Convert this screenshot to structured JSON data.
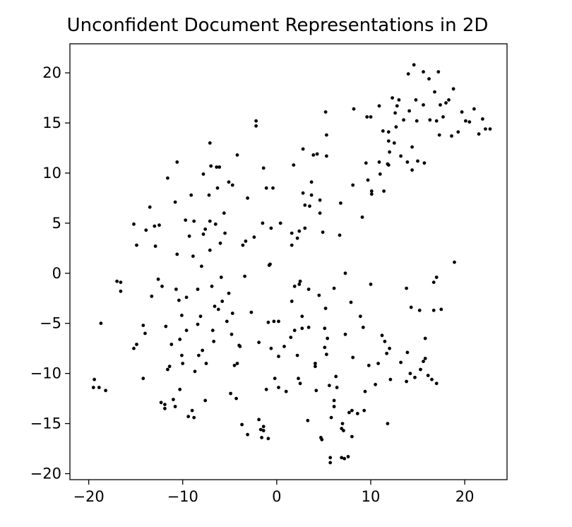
{
  "chart_data": {
    "type": "scatter",
    "title": "Unconfident Document Representations in 2D",
    "xlabel": "",
    "ylabel": "",
    "xlim": [
      -22,
      24.5
    ],
    "ylim": [
      -20.6,
      22.9
    ],
    "xticks": [
      -20,
      -10,
      0,
      10,
      20
    ],
    "yticks": [
      -20,
      -15,
      -10,
      -5,
      0,
      5,
      10,
      15,
      20
    ],
    "xtick_labels": [
      "−20",
      "−10",
      "0",
      "10",
      "20"
    ],
    "ytick_labels": [
      "−20",
      "−15",
      "−10",
      "−5",
      "0",
      "5",
      "10",
      "15",
      "20"
    ],
    "grid": false,
    "marker_color": "#000000",
    "points": [
      [
        -19.4,
        -10.6
      ],
      [
        -19.5,
        -11.4
      ],
      [
        -18.9,
        -11.4
      ],
      [
        -18.2,
        -11.7
      ],
      [
        -18.7,
        -5.0
      ],
      [
        -17.0,
        -0.8
      ],
      [
        -16.6,
        -0.9
      ],
      [
        -16.6,
        -1.8
      ],
      [
        -15.2,
        -7.5
      ],
      [
        -14.9,
        -7.1
      ],
      [
        -15.2,
        4.9
      ],
      [
        -14.9,
        2.8
      ],
      [
        -14.2,
        -5.2
      ],
      [
        -14.0,
        -6.0
      ],
      [
        -14.2,
        -10.5
      ],
      [
        -13.9,
        4.3
      ],
      [
        -13.5,
        6.6
      ],
      [
        -13.0,
        4.7
      ],
      [
        -12.9,
        2.7
      ],
      [
        -12.6,
        -0.6
      ],
      [
        -13.3,
        -2.3
      ],
      [
        -12.5,
        4.8
      ],
      [
        -12.2,
        -1.3
      ],
      [
        -11.8,
        -5.3
      ],
      [
        -12.3,
        -12.9
      ],
      [
        -11.9,
        -13.1
      ],
      [
        -11.9,
        -13.5
      ],
      [
        -11.6,
        9.5
      ],
      [
        -11.4,
        -9.3
      ],
      [
        -11.6,
        -9.6
      ],
      [
        -11.2,
        -7.1
      ],
      [
        -11.0,
        -12.6
      ],
      [
        -10.8,
        -13.3
      ],
      [
        -10.8,
        7.1
      ],
      [
        -10.6,
        11.1
      ],
      [
        -10.6,
        1.9
      ],
      [
        -10.7,
        -1.6
      ],
      [
        -10.4,
        -2.7
      ],
      [
        -10.3,
        -6.6
      ],
      [
        -10.1,
        -4.2
      ],
      [
        -10.1,
        -8.2
      ],
      [
        -10.0,
        -9.0
      ],
      [
        -10.3,
        -11.6
      ],
      [
        -9.7,
        5.3
      ],
      [
        -9.6,
        -5.7
      ],
      [
        -9.6,
        -2.4
      ],
      [
        -9.3,
        3.7
      ],
      [
        -9.1,
        7.8
      ],
      [
        -9.0,
        -13.7
      ],
      [
        -8.8,
        -14.4
      ],
      [
        -8.8,
        5.2
      ],
      [
        -8.9,
        1.7
      ],
      [
        -9.4,
        -14.3
      ],
      [
        -8.7,
        -9.8
      ],
      [
        -8.4,
        -1.6
      ],
      [
        -8.4,
        -5.1
      ],
      [
        -8.3,
        -8.2
      ],
      [
        -8.1,
        -4.3
      ],
      [
        -8.0,
        0.7
      ],
      [
        -7.9,
        -7.7
      ],
      [
        -7.8,
        3.9
      ],
      [
        -7.8,
        9.9
      ],
      [
        -7.6,
        -12.7
      ],
      [
        -7.5,
        -9.0
      ],
      [
        -7.6,
        4.4
      ],
      [
        -7.2,
        7.8
      ],
      [
        -7.1,
        13.0
      ],
      [
        -7.1,
        5.2
      ],
      [
        -7.0,
        10.7
      ],
      [
        -7.1,
        2.3
      ],
      [
        -6.9,
        -1.3
      ],
      [
        -6.8,
        -5.7
      ],
      [
        -6.7,
        -6.8
      ],
      [
        -6.6,
        -3.3
      ],
      [
        -6.5,
        4.9
      ],
      [
        -6.4,
        10.6
      ],
      [
        -6.3,
        8.5
      ],
      [
        -6.2,
        -3.6
      ],
      [
        -6.1,
        10.6
      ],
      [
        -6.0,
        3.0
      ],
      [
        -5.9,
        -0.4
      ],
      [
        -5.8,
        -2.8
      ],
      [
        -5.6,
        6.0
      ],
      [
        -5.5,
        4.0
      ],
      [
        -5.3,
        -4.8
      ],
      [
        -5.1,
        -2.0
      ],
      [
        -5.1,
        9.1
      ],
      [
        -4.9,
        -12.0
      ],
      [
        -4.8,
        -6.1
      ],
      [
        -4.7,
        -4.0
      ],
      [
        -4.7,
        8.8
      ],
      [
        -4.5,
        -9.2
      ],
      [
        -4.3,
        -12.5
      ],
      [
        -4.2,
        11.8
      ],
      [
        -4.2,
        -9.0
      ],
      [
        -4.0,
        -7.2
      ],
      [
        -3.9,
        -7.3
      ],
      [
        -3.7,
        -15.1
      ],
      [
        -3.6,
        2.8
      ],
      [
        -3.4,
        -0.3
      ],
      [
        -3.3,
        3.2
      ],
      [
        -3.1,
        -16.1
      ],
      [
        -3.1,
        7.5
      ],
      [
        -2.7,
        -3.9
      ],
      [
        -2.4,
        3.6
      ],
      [
        -2.2,
        14.7
      ],
      [
        -2.2,
        15.2
      ],
      [
        -1.9,
        -6.9
      ],
      [
        -1.9,
        -14.6
      ],
      [
        -1.7,
        -15.6
      ],
      [
        -1.6,
        -16.4
      ],
      [
        -1.4,
        -15.3
      ],
      [
        -1.4,
        -15.7
      ],
      [
        -1.5,
        5.0
      ],
      [
        -1.4,
        10.5
      ],
      [
        -1.1,
        8.5
      ],
      [
        -1.1,
        -11.6
      ],
      [
        -0.9,
        -16.5
      ],
      [
        -0.9,
        -4.9
      ],
      [
        -0.8,
        0.8
      ],
      [
        -0.7,
        0.9
      ],
      [
        -0.6,
        -7.5
      ],
      [
        -0.6,
        4.5
      ],
      [
        -0.4,
        8.5
      ],
      [
        -0.3,
        -4.8
      ],
      [
        -0.2,
        -10.5
      ],
      [
        0.2,
        -11.4
      ],
      [
        0.2,
        -4.8
      ],
      [
        0.2,
        -8.3
      ],
      [
        0.4,
        5.0
      ],
      [
        0.8,
        -7.3
      ],
      [
        1.0,
        -11.8
      ],
      [
        1.5,
        -6.4
      ],
      [
        1.6,
        2.8
      ],
      [
        1.6,
        4.0
      ],
      [
        1.6,
        -2.8
      ],
      [
        1.9,
        -1.3
      ],
      [
        1.8,
        10.8
      ],
      [
        1.9,
        -5.7
      ],
      [
        2.2,
        -8.2
      ],
      [
        2.2,
        3.5
      ],
      [
        2.4,
        4.2
      ],
      [
        2.3,
        -10.5
      ],
      [
        2.4,
        -1.1
      ],
      [
        2.5,
        -0.8
      ],
      [
        2.5,
        -11.0
      ],
      [
        2.7,
        -5.5
      ],
      [
        2.7,
        -4.3
      ],
      [
        2.8,
        12.4
      ],
      [
        2.8,
        8.0
      ],
      [
        3.0,
        6.8
      ],
      [
        3.0,
        4.5
      ],
      [
        3.3,
        -14.7
      ],
      [
        3.4,
        -5.4
      ],
      [
        3.4,
        -1.6
      ],
      [
        3.5,
        6.7
      ],
      [
        3.7,
        7.8
      ],
      [
        3.7,
        9.1
      ],
      [
        3.9,
        11.8
      ],
      [
        4.1,
        -9.0
      ],
      [
        4.1,
        -9.3
      ],
      [
        4.2,
        -11.7
      ],
      [
        4.3,
        11.9
      ],
      [
        4.5,
        -2.2
      ],
      [
        4.6,
        6.0
      ],
      [
        4.6,
        7.3
      ],
      [
        4.7,
        -16.4
      ],
      [
        4.8,
        -16.6
      ],
      [
        4.9,
        4.1
      ],
      [
        5.1,
        -5.5
      ],
      [
        5.1,
        -7.4
      ],
      [
        5.2,
        -3.5
      ],
      [
        5.2,
        16.1
      ],
      [
        5.3,
        -8.1
      ],
      [
        5.3,
        11.7
      ],
      [
        5.3,
        13.8
      ],
      [
        5.4,
        -6.5
      ],
      [
        5.6,
        -11.2
      ],
      [
        5.7,
        -18.4
      ],
      [
        5.7,
        -18.9
      ],
      [
        5.8,
        -14.4
      ],
      [
        6.1,
        -13.3
      ],
      [
        6.1,
        -12.7
      ],
      [
        6.1,
        -1.5
      ],
      [
        6.3,
        -10.3
      ],
      [
        6.4,
        -11.4
      ],
      [
        6.7,
        3.8
      ],
      [
        6.8,
        7.0
      ],
      [
        6.9,
        -18.4
      ],
      [
        6.9,
        -15.5
      ],
      [
        7.0,
        -15.0
      ],
      [
        7.1,
        -15.7
      ],
      [
        7.2,
        -18.5
      ],
      [
        7.3,
        -6.1
      ],
      [
        7.3,
        0.0
      ],
      [
        7.6,
        -18.3
      ],
      [
        7.7,
        -13.9
      ],
      [
        7.9,
        -2.9
      ],
      [
        8.0,
        -16.3
      ],
      [
        8.0,
        -13.7
      ],
      [
        8.1,
        8.8
      ],
      [
        8.1,
        -8.4
      ],
      [
        8.2,
        16.4
      ],
      [
        8.6,
        -14.0
      ],
      [
        8.9,
        -4.3
      ],
      [
        9.1,
        5.6
      ],
      [
        9.2,
        -5.4
      ],
      [
        9.3,
        -13.7
      ],
      [
        9.4,
        -11.8
      ],
      [
        9.5,
        11.0
      ],
      [
        9.6,
        15.6
      ],
      [
        9.7,
        9.3
      ],
      [
        9.8,
        -9.2
      ],
      [
        10.0,
        -1.1
      ],
      [
        10.0,
        15.6
      ],
      [
        10.1,
        7.9
      ],
      [
        10.1,
        8.2
      ],
      [
        10.5,
        -11.1
      ],
      [
        10.8,
        -9.0
      ],
      [
        10.9,
        16.7
      ],
      [
        10.9,
        11.1
      ],
      [
        11.0,
        9.9
      ],
      [
        11.2,
        -6.2
      ],
      [
        11.3,
        14.2
      ],
      [
        11.4,
        8.2
      ],
      [
        11.5,
        -6.8
      ],
      [
        11.7,
        -8.0
      ],
      [
        11.8,
        10.9
      ],
      [
        11.8,
        -15.0
      ],
      [
        11.9,
        10.8
      ],
      [
        11.9,
        13.2
      ],
      [
        11.9,
        14.1
      ],
      [
        12.0,
        12.1
      ],
      [
        12.0,
        -7.5
      ],
      [
        12.1,
        -10.6
      ],
      [
        12.3,
        17.5
      ],
      [
        12.5,
        13.0
      ],
      [
        12.6,
        16.0
      ],
      [
        12.7,
        14.6
      ],
      [
        12.8,
        16.7
      ],
      [
        13.0,
        17.3
      ],
      [
        13.2,
        -8.9
      ],
      [
        13.2,
        11.7
      ],
      [
        13.5,
        15.3
      ],
      [
        13.8,
        -1.5
      ],
      [
        13.8,
        -10.8
      ],
      [
        13.9,
        -7.9
      ],
      [
        13.9,
        11.1
      ],
      [
        14.0,
        19.9
      ],
      [
        14.1,
        16.2
      ],
      [
        14.2,
        -10.0
      ],
      [
        14.3,
        -3.4
      ],
      [
        14.4,
        12.6
      ],
      [
        14.4,
        10.3
      ],
      [
        14.6,
        20.8
      ],
      [
        14.7,
        -10.4
      ],
      [
        14.8,
        17.3
      ],
      [
        14.9,
        15.2
      ],
      [
        15.0,
        11.2
      ],
      [
        15.2,
        -3.7
      ],
      [
        15.3,
        -9.6
      ],
      [
        15.6,
        20.1
      ],
      [
        15.6,
        16.8
      ],
      [
        15.6,
        -8.8
      ],
      [
        15.7,
        11.0
      ],
      [
        15.8,
        -6.5
      ],
      [
        15.8,
        -8.5
      ],
      [
        16.1,
        -10.2
      ],
      [
        16.2,
        19.4
      ],
      [
        16.3,
        15.3
      ],
      [
        16.5,
        -10.6
      ],
      [
        16.7,
        -3.7
      ],
      [
        16.7,
        -0.9
      ],
      [
        16.8,
        18.1
      ],
      [
        17.0,
        -0.4
      ],
      [
        17.0,
        15.2
      ],
      [
        17.0,
        -11.0
      ],
      [
        17.2,
        20.1
      ],
      [
        17.3,
        13.8
      ],
      [
        17.4,
        16.8
      ],
      [
        17.5,
        -3.6
      ],
      [
        17.7,
        15.6
      ],
      [
        18.0,
        17.0
      ],
      [
        18.3,
        17.3
      ],
      [
        18.6,
        13.7
      ],
      [
        18.8,
        18.4
      ],
      [
        18.9,
        1.1
      ],
      [
        19.3,
        14.1
      ],
      [
        19.7,
        16.1
      ],
      [
        20.1,
        15.2
      ],
      [
        20.5,
        15.1
      ],
      [
        21.0,
        16.4
      ],
      [
        21.5,
        13.9
      ],
      [
        21.9,
        15.4
      ],
      [
        22.2,
        14.4
      ],
      [
        22.7,
        14.4
      ]
    ]
  }
}
